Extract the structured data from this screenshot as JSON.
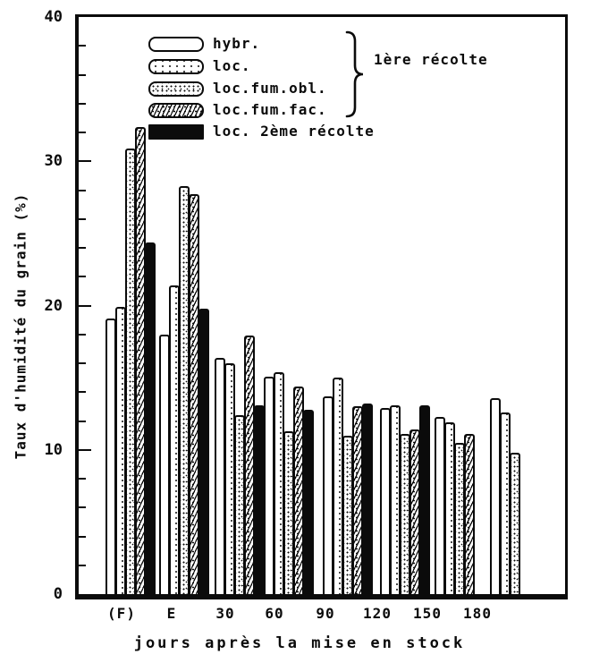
{
  "chart_data": {
    "type": "bar",
    "title": "",
    "xlabel": "jours après la mise en stock",
    "ylabel": "Taux d'humidité du grain (%)",
    "ylim": [
      0,
      40
    ],
    "y_major_ticks": [
      0,
      10,
      20,
      30,
      40
    ],
    "y_minor_step": 2,
    "grid": false,
    "legend_position": "top-inside",
    "categories": [
      "(F)",
      "E",
      "30",
      "60",
      "90",
      "120",
      "150",
      "180"
    ],
    "series": [
      {
        "name": "hybr.",
        "pattern": "plain",
        "values": [
          19.1,
          18.0,
          16.4,
          15.1,
          13.7,
          12.9,
          12.3,
          13.6
        ]
      },
      {
        "name": "loc.",
        "pattern": "dots-sparse",
        "values": [
          19.9,
          21.4,
          16.0,
          15.4,
          15.0,
          13.1,
          11.9,
          12.6
        ]
      },
      {
        "name": "loc.fum.obl.",
        "pattern": "dots-dense",
        "values": [
          30.9,
          28.3,
          12.4,
          11.3,
          11.0,
          11.1,
          10.5,
          9.8
        ]
      },
      {
        "name": "loc.fum.fac.",
        "pattern": "hatch",
        "values": [
          32.4,
          27.7,
          17.9,
          14.4,
          13.0,
          11.4,
          11.1,
          null
        ]
      },
      {
        "name": "loc. 2ème récolte",
        "pattern": "solid-black",
        "values": [
          24.4,
          19.8,
          13.1,
          12.8,
          13.2,
          13.1,
          null,
          null
        ]
      }
    ],
    "legend": {
      "first_harvest_label": "1ère récolte",
      "first_harvest_series": [
        "hybr.",
        "loc.",
        "loc.fum.obl.",
        "loc.fum.fac."
      ]
    },
    "colors": {
      "ink": "#0b0b0b",
      "paper": "#ffffff"
    }
  }
}
